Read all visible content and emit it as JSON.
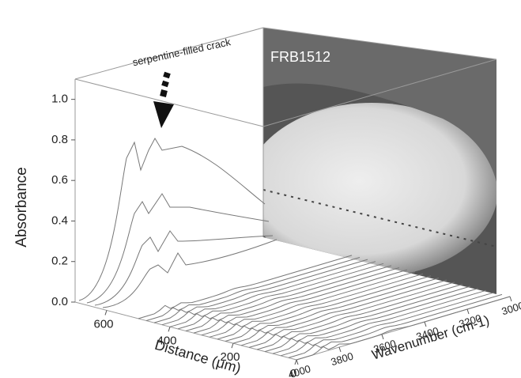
{
  "chart_data": {
    "type": "waterfall",
    "y_label": "Absorbance",
    "x_label": "Distance (μm)",
    "z_label": "Wavenumber (cm-1)",
    "annotations": [
      "serpentine-filled crack",
      "FRB1512"
    ],
    "ylim": [
      0,
      1.1
    ],
    "yticks": [
      {
        "value": 0,
        "label": "0.0"
      },
      {
        "value": 0.2,
        "label": "0.2"
      },
      {
        "value": 0.4,
        "label": "0.4"
      },
      {
        "value": 0.6,
        "label": "0.6"
      },
      {
        "value": 0.8,
        "label": "0.8"
      },
      {
        "value": 1,
        "label": "1.0"
      }
    ],
    "xlim": [
      0,
      700
    ],
    "xticks": [
      600,
      400,
      200,
      0
    ],
    "zlim": [
      4000,
      3000
    ],
    "zticks": [
      4000,
      3800,
      3600,
      3400,
      3200,
      3000
    ]
  }
}
